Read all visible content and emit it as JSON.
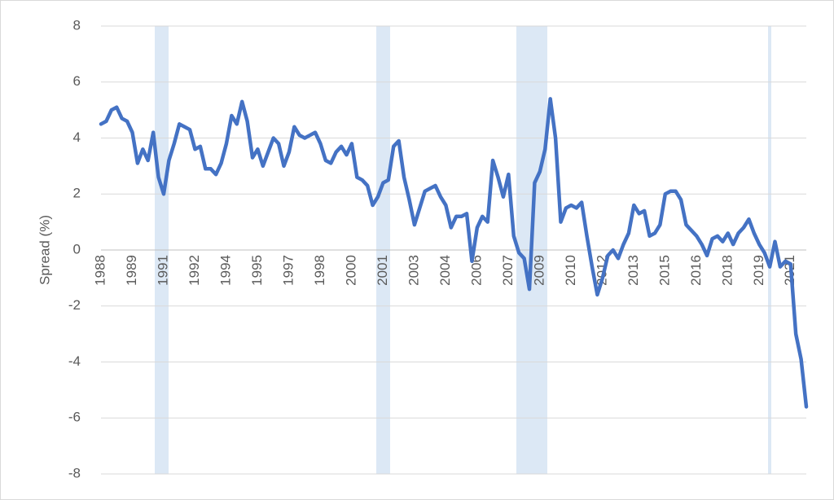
{
  "chart_data": {
    "type": "line",
    "y_label": "Spread (%)",
    "color": "#4472c4",
    "grid": true,
    "categories": [
      "1988",
      null,
      null,
      null,
      null,
      null,
      "1989",
      null,
      null,
      null,
      null,
      null,
      "1991",
      null,
      null,
      null,
      null,
      null,
      "1992",
      null,
      null,
      null,
      null,
      null,
      "1994",
      null,
      null,
      null,
      null,
      null,
      "1995",
      null,
      null,
      null,
      null,
      null,
      "1997",
      null,
      null,
      null,
      null,
      null,
      "1998",
      null,
      null,
      null,
      null,
      null,
      "2000",
      null,
      null,
      null,
      null,
      null,
      "2001",
      null,
      null,
      null,
      null,
      null,
      "2003",
      null,
      null,
      null,
      null,
      null,
      "2004",
      null,
      null,
      null,
      null,
      null,
      "2006",
      null,
      null,
      null,
      null,
      null,
      "2007",
      null,
      null,
      null,
      null,
      null,
      "2009",
      null,
      null,
      null,
      null,
      null,
      "2010",
      null,
      null,
      null,
      null,
      null,
      "2012",
      null,
      null,
      null,
      null,
      null,
      "2013",
      null,
      null,
      null,
      null,
      null,
      "2015",
      null,
      null,
      null,
      null,
      null,
      "2016",
      null,
      null,
      null,
      null,
      null,
      "2018",
      null,
      null,
      null,
      null,
      null,
      "2019",
      null,
      null,
      null,
      null,
      null,
      "2021",
      null,
      null,
      null
    ],
    "values": [
      4.5,
      4.6,
      5.0,
      5.1,
      4.7,
      4.6,
      4.2,
      3.1,
      3.6,
      3.2,
      4.2,
      2.6,
      2.0,
      3.2,
      3.8,
      4.5,
      4.4,
      4.3,
      3.6,
      3.7,
      2.9,
      2.9,
      2.7,
      3.1,
      3.8,
      4.8,
      4.5,
      5.3,
      4.6,
      3.3,
      3.6,
      3.0,
      3.5,
      4.0,
      3.8,
      3.0,
      3.5,
      4.4,
      4.1,
      4.0,
      4.1,
      4.2,
      3.8,
      3.2,
      3.1,
      3.5,
      3.7,
      3.4,
      3.8,
      2.6,
      2.5,
      2.3,
      1.6,
      1.9,
      2.4,
      2.5,
      3.7,
      3.9,
      2.6,
      1.8,
      0.9,
      1.5,
      2.1,
      2.2,
      2.3,
      1.9,
      1.6,
      0.8,
      1.2,
      1.2,
      1.3,
      -0.4,
      0.8,
      1.2,
      1.0,
      3.2,
      2.6,
      1.9,
      2.7,
      0.5,
      -0.1,
      -0.3,
      -1.4,
      2.4,
      2.8,
      3.6,
      5.4,
      4.0,
      1.0,
      1.5,
      1.6,
      1.5,
      1.7,
      0.5,
      -0.6,
      -1.6,
      -1.0,
      -0.2,
      0.0,
      -0.3,
      0.2,
      0.6,
      1.6,
      1.3,
      1.4,
      0.5,
      0.6,
      0.9,
      2.0,
      2.1,
      2.1,
      1.8,
      0.9,
      0.7,
      0.5,
      0.2,
      -0.2,
      0.4,
      0.5,
      0.3,
      0.6,
      0.2,
      0.6,
      0.8,
      1.1,
      0.6,
      0.2,
      -0.1,
      -0.6,
      0.3,
      -0.6,
      -0.4,
      -0.5,
      -3.0,
      -3.9,
      -5.6
    ],
    "ylim": [
      -8,
      8
    ],
    "yticks": [
      -8,
      -6,
      -4,
      -2,
      0,
      2,
      4,
      6,
      8
    ]
  }
}
